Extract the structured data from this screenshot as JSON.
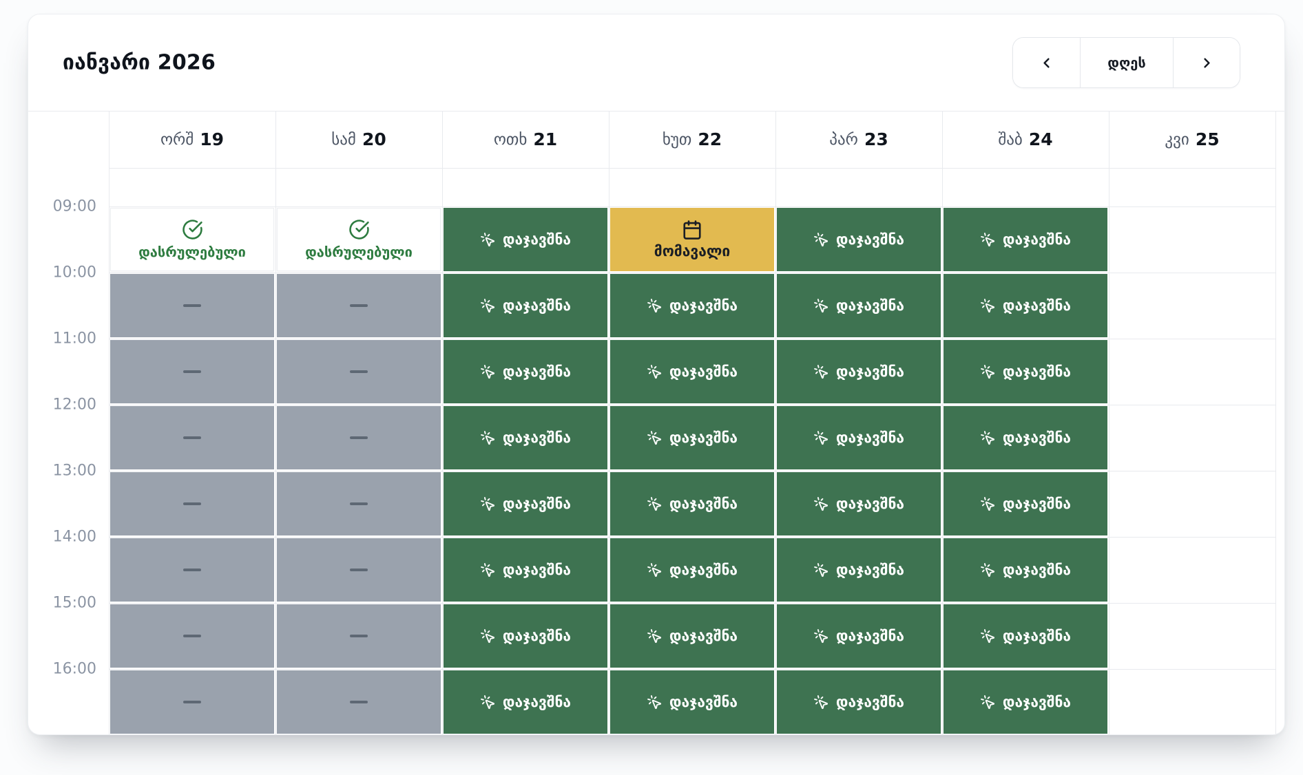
{
  "header": {
    "title": "იანვარი 2026",
    "today_label": "დღეს",
    "prev_icon": "chevron-left-icon",
    "next_icon": "chevron-right-icon"
  },
  "calendar": {
    "time_labels": [
      "09:00",
      "10:00",
      "11:00",
      "12:00",
      "13:00",
      "14:00",
      "15:00",
      "16:00"
    ],
    "slot_labels": {
      "booked": "დაჯავშნა",
      "upcoming": "მომავალი",
      "completed": "დასრულებული",
      "blocked": "—"
    },
    "slot_icons": {
      "booked": "mouse-pointer-click-icon",
      "upcoming": "calendar-icon",
      "completed": "circle-check-icon"
    },
    "days": [
      {
        "abbr": "ორშ",
        "num": "19",
        "slots": [
          "completed",
          "blocked",
          "blocked",
          "blocked",
          "blocked",
          "blocked",
          "blocked",
          "blocked"
        ]
      },
      {
        "abbr": "სამ",
        "num": "20",
        "slots": [
          "completed",
          "blocked",
          "blocked",
          "blocked",
          "blocked",
          "blocked",
          "blocked",
          "blocked"
        ]
      },
      {
        "abbr": "ოთხ",
        "num": "21",
        "slots": [
          "booked",
          "booked",
          "booked",
          "booked",
          "booked",
          "booked",
          "booked",
          "booked"
        ]
      },
      {
        "abbr": "ხუთ",
        "num": "22",
        "slots": [
          "upcoming",
          "booked",
          "booked",
          "booked",
          "booked",
          "booked",
          "booked",
          "booked"
        ]
      },
      {
        "abbr": "პარ",
        "num": "23",
        "slots": [
          "booked",
          "booked",
          "booked",
          "booked",
          "booked",
          "booked",
          "booked",
          "booked"
        ]
      },
      {
        "abbr": "შაბ",
        "num": "24",
        "slots": [
          "booked",
          "booked",
          "booked",
          "booked",
          "booked",
          "booked",
          "booked",
          "booked"
        ]
      },
      {
        "abbr": "კვი",
        "num": "25",
        "slots": [
          "empty",
          "empty",
          "empty",
          "empty",
          "empty",
          "empty",
          "empty",
          "empty"
        ]
      }
    ]
  },
  "colors": {
    "booked_bg": "#3E7351",
    "upcoming_bg": "#E2BA50",
    "blocked_bg": "#9AA2AD",
    "completed_fg": "#2E7C40",
    "upcoming_fg": "#1A1E25"
  }
}
